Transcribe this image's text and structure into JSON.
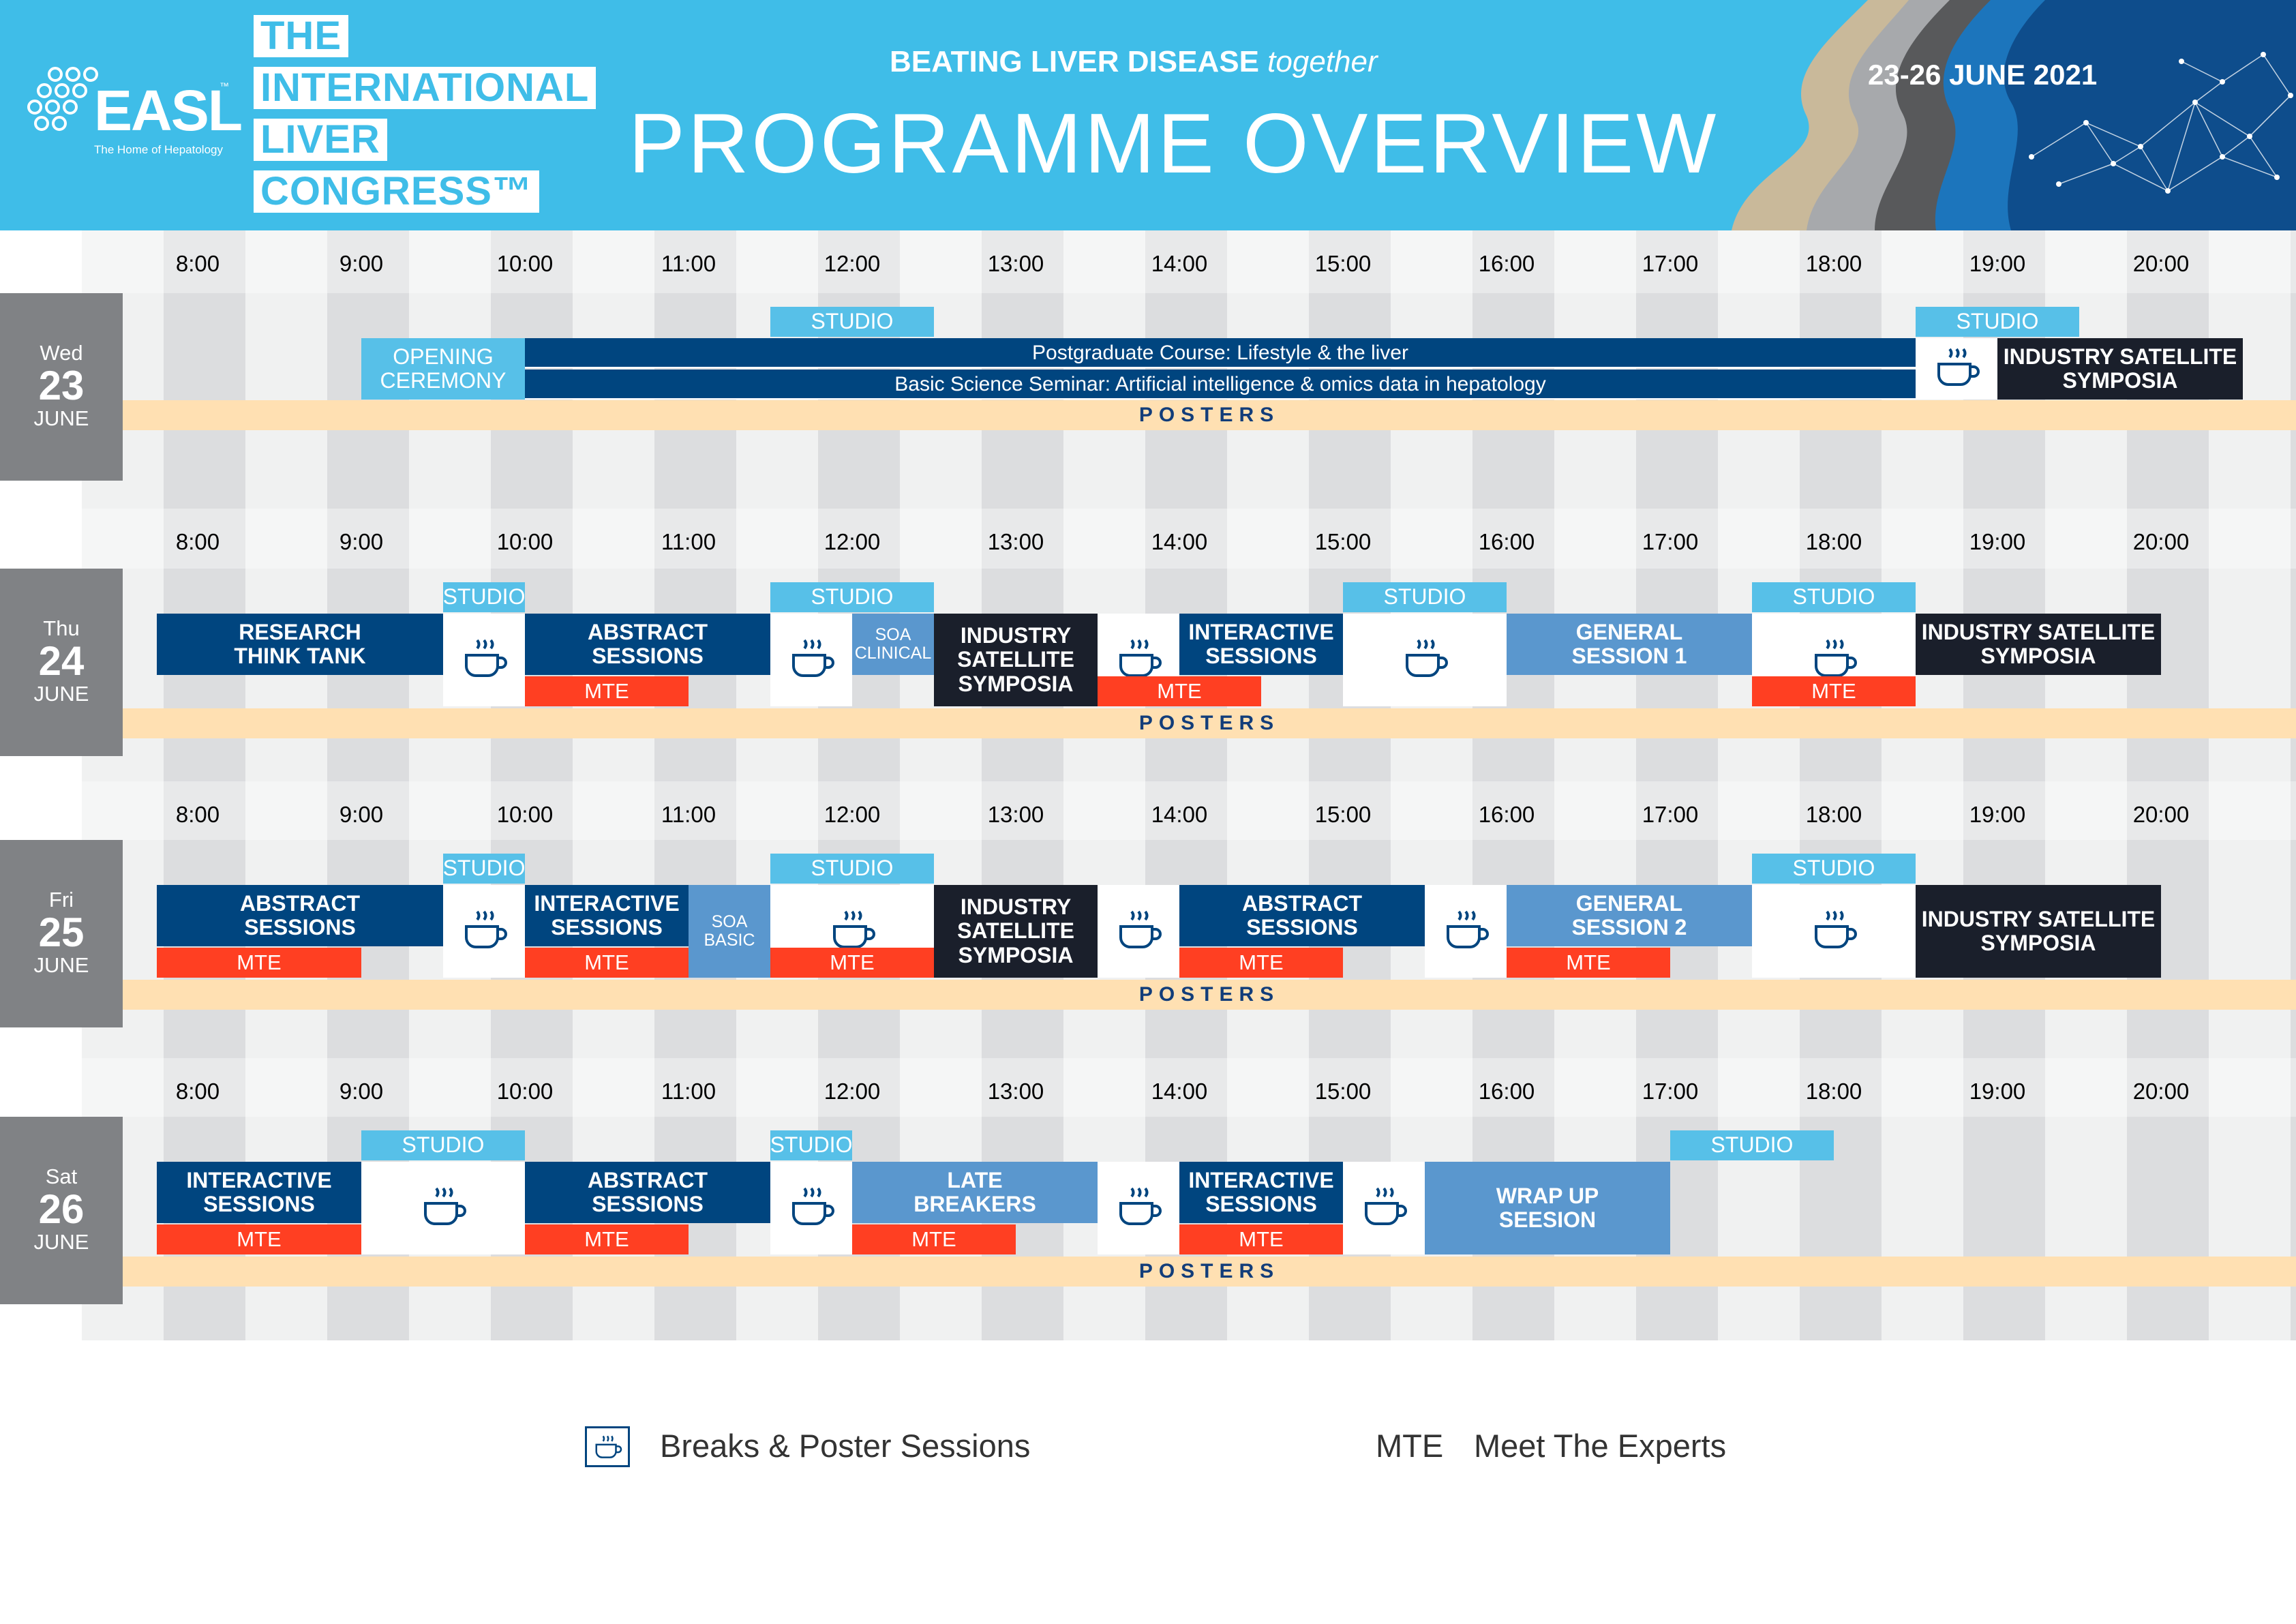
{
  "header": {
    "logo_text": "EASL",
    "logo_trademark": "™",
    "logo_subtitle": "The Home of Hepatology",
    "congress_lines": [
      "THE",
      "INTERNATIONAL",
      "LIVER",
      "CONGRESS™"
    ],
    "tagline_main": "BEATING LIVER DISEASE",
    "tagline_em": "together",
    "title": "PROGRAMME OVERVIEW",
    "dates": "23-26 JUNE 2021"
  },
  "times": [
    "8:00",
    "9:00",
    "10:00",
    "11:00",
    "12:00",
    "13:00",
    "14:00",
    "15:00",
    "16:00",
    "17:00",
    "18:00",
    "19:00",
    "20:00"
  ],
  "colors": {
    "navy": "#00457f",
    "black": "#1a1f2b",
    "mid_blue": "#5a97ce",
    "sky_blue": "#57c0e8",
    "mte_red": "#ff3f22",
    "posters": "#ffe0b2",
    "header_bg": "#3fbde8"
  },
  "posters_label": "POSTERS",
  "days": [
    {
      "name": "Wed",
      "num": "23",
      "month": "JUNE",
      "blocks": [
        {
          "id": "studio-1",
          "label": "STUDIO",
          "style": "sky",
          "start": 11.5,
          "end": 12.5,
          "row": "studio"
        },
        {
          "id": "studio-2",
          "label": "STUDIO",
          "style": "sky",
          "start": 18.5,
          "end": 19.5,
          "row": "studio"
        },
        {
          "id": "opening-ceremony",
          "label": "OPENING\nCEREMONY",
          "style": "sky",
          "start": 9.0,
          "end": 10.0,
          "row": "full"
        },
        {
          "id": "postgraduate-course",
          "label": "Postgraduate Course: Lifestyle & the liver",
          "style": "navy",
          "start": 10.0,
          "end": 18.5,
          "row": "half-top"
        },
        {
          "id": "basic-science-seminar",
          "label": "Basic Science Seminar: Artificial intelligence & omics data in hepatology",
          "style": "navy",
          "start": 10.0,
          "end": 18.5,
          "row": "half-bottom"
        },
        {
          "id": "break-1",
          "label": "",
          "style": "white",
          "start": 18.5,
          "end": 19.0,
          "row": "full",
          "icon": "coffee-cup-icon"
        },
        {
          "id": "industry-satellite",
          "label": "INDUSTRY SATELLITE\nSYMPOSIA",
          "style": "black",
          "start": 19.0,
          "end": 20.5,
          "row": "full"
        }
      ]
    },
    {
      "name": "Thu",
      "num": "24",
      "month": "JUNE",
      "blocks": [
        {
          "id": "studio-1",
          "label": "STUDIO",
          "style": "sky",
          "start": 9.5,
          "end": 10.0,
          "row": "studio"
        },
        {
          "id": "studio-2",
          "label": "STUDIO",
          "style": "sky",
          "start": 11.5,
          "end": 12.5,
          "row": "studio"
        },
        {
          "id": "studio-3",
          "label": "STUDIO",
          "style": "sky",
          "start": 15.0,
          "end": 16.0,
          "row": "studio"
        },
        {
          "id": "studio-4",
          "label": "STUDIO",
          "style": "sky",
          "start": 17.5,
          "end": 18.5,
          "row": "studio"
        },
        {
          "id": "research-think-tank",
          "label": "RESEARCH\nTHINK TANK",
          "style": "navy",
          "start": 7.75,
          "end": 9.5,
          "row": "main"
        },
        {
          "id": "break-1",
          "label": "",
          "style": "white",
          "start": 9.5,
          "end": 10.0,
          "row": "main",
          "icon": "coffee-cup-icon"
        },
        {
          "id": "abstract-sessions",
          "label": "ABSTRACT\nSESSIONS",
          "style": "navy",
          "start": 10.0,
          "end": 11.5,
          "row": "main"
        },
        {
          "id": "mte-1",
          "label": "MTE",
          "style": "red",
          "start": 10.0,
          "end": 11.0,
          "row": "mte"
        },
        {
          "id": "break-2",
          "label": "",
          "style": "white",
          "start": 11.5,
          "end": 12.0,
          "row": "main",
          "icon": "coffee-cup-icon"
        },
        {
          "id": "soa-clinical",
          "label": "SOA\nCLINICAL",
          "style": "mid",
          "start": 12.0,
          "end": 12.5,
          "row": "main",
          "small": true
        },
        {
          "id": "industry-satellite-1",
          "label": "INDUSTRY\nSATELLITE\nSYMPOSIA",
          "style": "black",
          "start": 12.5,
          "end": 13.5,
          "row": "tall"
        },
        {
          "id": "break-3",
          "label": "",
          "style": "white",
          "start": 13.5,
          "end": 14.0,
          "row": "main",
          "icon": "coffee-cup-icon"
        },
        {
          "id": "mte-2",
          "label": "MTE",
          "style": "red",
          "start": 13.5,
          "end": 14.5,
          "row": "mte"
        },
        {
          "id": "interactive-sessions",
          "label": "INTERACTIVE\nSESSIONS",
          "style": "navy",
          "start": 14.0,
          "end": 15.0,
          "row": "main"
        },
        {
          "id": "break-4",
          "label": "",
          "style": "white",
          "start": 15.0,
          "end": 16.0,
          "row": "main",
          "icon": "coffee-cup-icon"
        },
        {
          "id": "general-session-1",
          "label": "GENERAL\nSESSION 1",
          "style": "mid",
          "start": 16.0,
          "end": 17.5,
          "row": "main"
        },
        {
          "id": "break-5",
          "label": "",
          "style": "white",
          "start": 17.5,
          "end": 18.5,
          "row": "main",
          "icon": "coffee-cup-icon"
        },
        {
          "id": "mte-3",
          "label": "MTE",
          "style": "red",
          "start": 17.5,
          "end": 18.5,
          "row": "mte"
        },
        {
          "id": "industry-satellite-2",
          "label": "INDUSTRY SATELLITE\nSYMPOSIA",
          "style": "black",
          "start": 18.5,
          "end": 20.0,
          "row": "main"
        }
      ]
    },
    {
      "name": "Fri",
      "num": "25",
      "month": "JUNE",
      "blocks": [
        {
          "id": "studio-1",
          "label": "STUDIO",
          "style": "sky",
          "start": 9.5,
          "end": 10.0,
          "row": "studio"
        },
        {
          "id": "studio-2",
          "label": "STUDIO",
          "style": "sky",
          "start": 11.5,
          "end": 12.5,
          "row": "studio"
        },
        {
          "id": "studio-3",
          "label": "STUDIO",
          "style": "sky",
          "start": 17.5,
          "end": 18.5,
          "row": "studio"
        },
        {
          "id": "abstract-sessions-1",
          "label": "ABSTRACT\nSESSIONS",
          "style": "navy",
          "start": 7.75,
          "end": 9.5,
          "row": "main"
        },
        {
          "id": "mte-1",
          "label": "MTE",
          "style": "red",
          "start": 7.75,
          "end": 9.0,
          "row": "mte"
        },
        {
          "id": "break-1",
          "label": "",
          "style": "white",
          "start": 9.5,
          "end": 10.0,
          "row": "tall",
          "icon": "coffee-cup-icon"
        },
        {
          "id": "interactive-sessions",
          "label": "INTERACTIVE\nSESSIONS",
          "style": "navy",
          "start": 10.0,
          "end": 11.0,
          "row": "main"
        },
        {
          "id": "mte-2",
          "label": "MTE",
          "style": "red",
          "start": 10.0,
          "end": 11.0,
          "row": "mte"
        },
        {
          "id": "soa-basic",
          "label": "SOA\nBASIC",
          "style": "mid",
          "start": 11.0,
          "end": 11.5,
          "row": "tall",
          "small": true
        },
        {
          "id": "break-2",
          "label": "",
          "style": "white",
          "start": 11.5,
          "end": 12.5,
          "row": "main",
          "icon": "coffee-cup-icon"
        },
        {
          "id": "mte-3",
          "label": "MTE",
          "style": "red",
          "start": 11.5,
          "end": 12.5,
          "row": "mte"
        },
        {
          "id": "industry-satellite-1",
          "label": "INDUSTRY\nSATELLITE\nSYMPOSIA",
          "style": "black",
          "start": 12.5,
          "end": 13.5,
          "row": "tall"
        },
        {
          "id": "break-3",
          "label": "",
          "style": "white",
          "start": 13.5,
          "end": 14.0,
          "row": "tall",
          "icon": "coffee-cup-icon"
        },
        {
          "id": "abstract-sessions-2",
          "label": "ABSTRACT\nSESSIONS",
          "style": "navy",
          "start": 14.0,
          "end": 15.5,
          "row": "main"
        },
        {
          "id": "mte-4",
          "label": "MTE",
          "style": "red",
          "start": 14.0,
          "end": 15.0,
          "row": "mte"
        },
        {
          "id": "break-4",
          "label": "",
          "style": "white",
          "start": 15.5,
          "end": 16.0,
          "row": "tall",
          "icon": "coffee-cup-icon"
        },
        {
          "id": "general-session-2",
          "label": "GENERAL\nSESSION 2",
          "style": "mid",
          "start": 16.0,
          "end": 17.5,
          "row": "main"
        },
        {
          "id": "mte-5",
          "label": "MTE",
          "style": "red",
          "start": 16.0,
          "end": 17.0,
          "row": "mte"
        },
        {
          "id": "break-5",
          "label": "",
          "style": "white",
          "start": 17.5,
          "end": 18.5,
          "row": "tall",
          "icon": "coffee-cup-icon"
        },
        {
          "id": "industry-satellite-2",
          "label": "INDUSTRY SATELLITE\nSYMPOSIA",
          "style": "black",
          "start": 18.5,
          "end": 20.0,
          "row": "tall"
        }
      ]
    },
    {
      "name": "Sat",
      "num": "26",
      "month": "JUNE",
      "blocks": [
        {
          "id": "studio-1",
          "label": "STUDIO",
          "style": "sky",
          "start": 9.0,
          "end": 10.0,
          "row": "studio"
        },
        {
          "id": "studio-2",
          "label": "STUDIO",
          "style": "sky",
          "start": 11.5,
          "end": 12.0,
          "row": "studio"
        },
        {
          "id": "studio-3",
          "label": "STUDIO",
          "style": "sky",
          "start": 17.0,
          "end": 18.0,
          "row": "studio"
        },
        {
          "id": "interactive-sessions-1",
          "label": "INTERACTIVE\nSESSIONS",
          "style": "navy",
          "start": 7.75,
          "end": 9.0,
          "row": "main"
        },
        {
          "id": "mte-1",
          "label": "MTE",
          "style": "red",
          "start": 7.75,
          "end": 9.0,
          "row": "mte"
        },
        {
          "id": "break-1",
          "label": "",
          "style": "white",
          "start": 9.0,
          "end": 10.0,
          "row": "tall",
          "icon": "coffee-cup-icon"
        },
        {
          "id": "abstract-sessions",
          "label": "ABSTRACT\nSESSIONS",
          "style": "navy",
          "start": 10.0,
          "end": 11.5,
          "row": "main"
        },
        {
          "id": "mte-2",
          "label": "MTE",
          "style": "red",
          "start": 10.0,
          "end": 11.0,
          "row": "mte"
        },
        {
          "id": "break-2",
          "label": "",
          "style": "white",
          "start": 11.5,
          "end": 12.0,
          "row": "tall",
          "icon": "coffee-cup-icon"
        },
        {
          "id": "late-breakers",
          "label": "LATE\nBREAKERS",
          "style": "mid",
          "start": 12.0,
          "end": 13.5,
          "row": "main"
        },
        {
          "id": "mte-3",
          "label": "MTE",
          "style": "red",
          "start": 12.0,
          "end": 13.0,
          "row": "mte"
        },
        {
          "id": "break-3",
          "label": "",
          "style": "white",
          "start": 13.5,
          "end": 14.0,
          "row": "tall",
          "icon": "coffee-cup-icon"
        },
        {
          "id": "interactive-sessions-2",
          "label": "INTERACTIVE\nSESSIONS",
          "style": "navy",
          "start": 14.0,
          "end": 15.0,
          "row": "main"
        },
        {
          "id": "mte-4",
          "label": "MTE",
          "style": "red",
          "start": 14.0,
          "end": 15.0,
          "row": "mte"
        },
        {
          "id": "break-4",
          "label": "",
          "style": "white",
          "start": 15.0,
          "end": 15.5,
          "row": "tall",
          "icon": "coffee-cup-icon"
        },
        {
          "id": "wrap-up-session",
          "label": "WRAP UP\nSEESION",
          "style": "mid",
          "start": 15.5,
          "end": 17.0,
          "row": "tall"
        }
      ]
    }
  ],
  "legend": {
    "breaks_label": "Breaks & Poster Sessions",
    "mte_abbr": "MTE",
    "mte_label": "Meet The Experts"
  }
}
